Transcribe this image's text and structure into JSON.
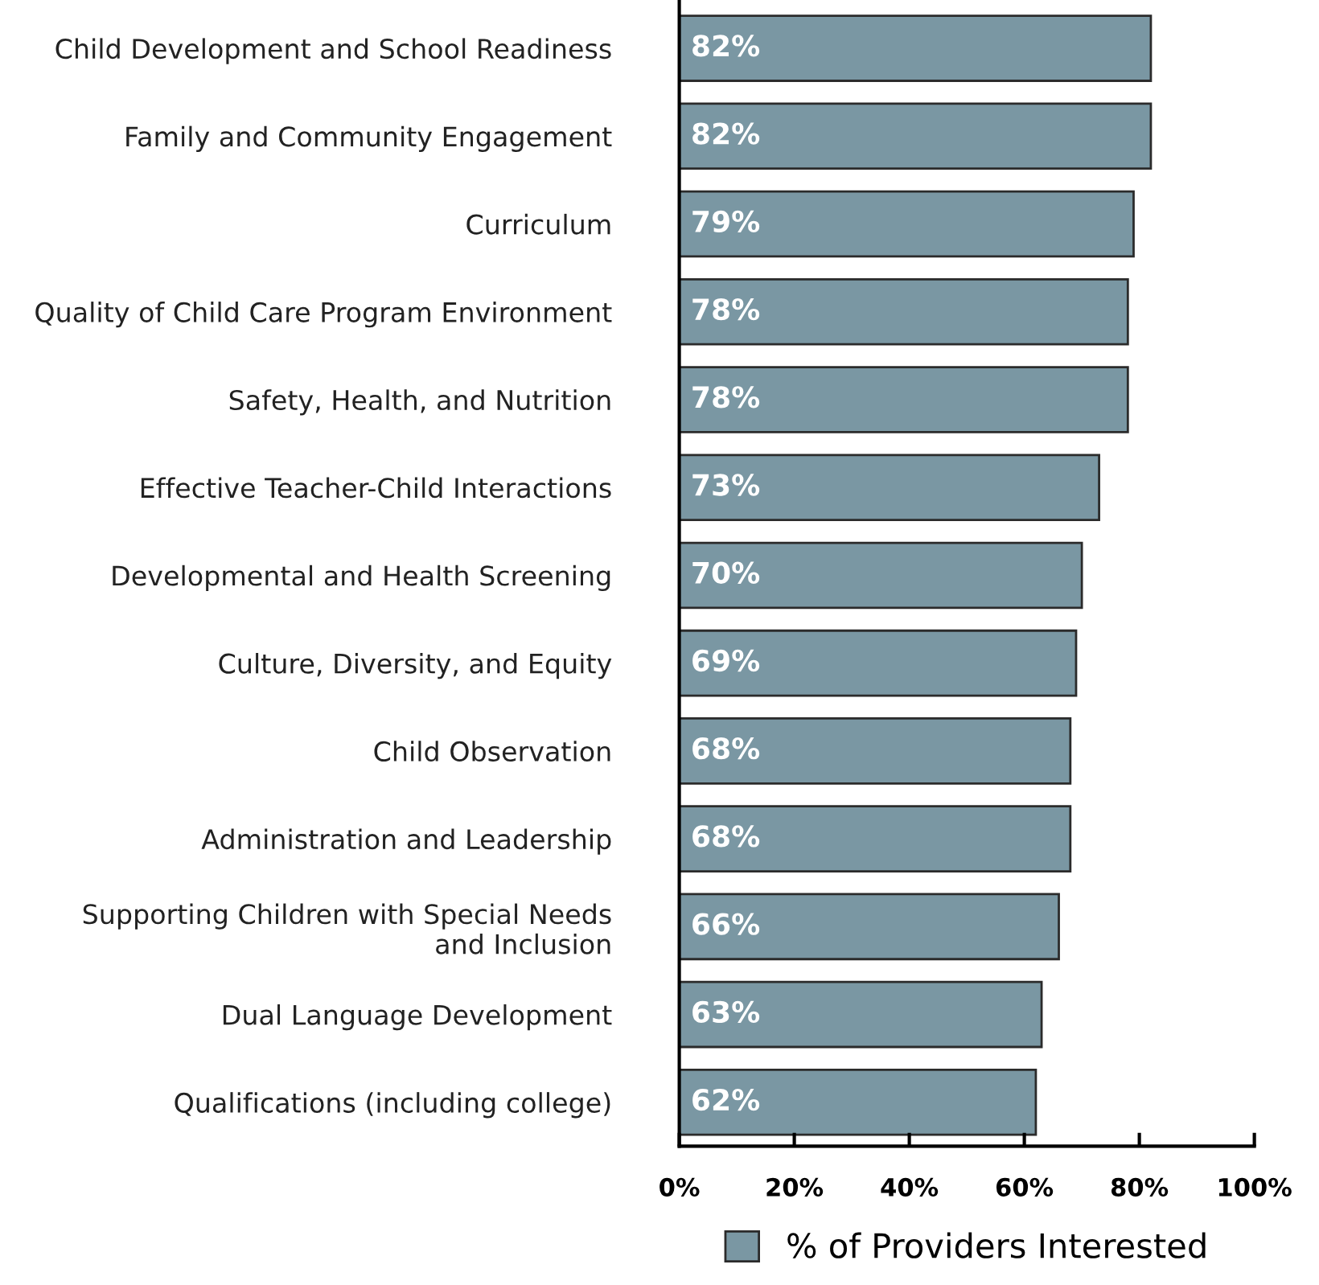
{
  "chart_data": {
    "type": "bar",
    "orientation": "horizontal",
    "categories": [
      "Child Development and School Readiness",
      "Family and Community Engagement",
      "Curriculum",
      "Quality of Child Care Program Environment",
      "Safety, Health, and Nutrition",
      "Effective Teacher-Child Interactions",
      "Developmental and Health Screening",
      "Culture, Diversity, and Equity",
      "Child Observation",
      "Administration and Leadership",
      "Supporting Children with Special Needs\nand Inclusion",
      "Dual Language Development",
      "Qualifications (including college)"
    ],
    "series": [
      {
        "name": "% of Providers Interested",
        "color": "#7a97a3",
        "values": [
          82,
          82,
          79,
          78,
          78,
          73,
          70,
          69,
          68,
          68,
          66,
          63,
          62
        ],
        "value_labels": [
          "82%",
          "82%",
          "79%",
          "78%",
          "78%",
          "73%",
          "70%",
          "69%",
          "68%",
          "68%",
          "66%",
          "63%",
          "62%"
        ]
      }
    ],
    "xlim": [
      0,
      100
    ],
    "xticks": [
      {
        "value": 0,
        "label": "0%"
      },
      {
        "value": 20,
        "label": "20%"
      },
      {
        "value": 40,
        "label": "40%"
      },
      {
        "value": 60,
        "label": "60%"
      },
      {
        "value": 80,
        "label": "80%"
      },
      {
        "value": 100,
        "label": "100%"
      }
    ],
    "grid": false,
    "legend": "bottom"
  }
}
